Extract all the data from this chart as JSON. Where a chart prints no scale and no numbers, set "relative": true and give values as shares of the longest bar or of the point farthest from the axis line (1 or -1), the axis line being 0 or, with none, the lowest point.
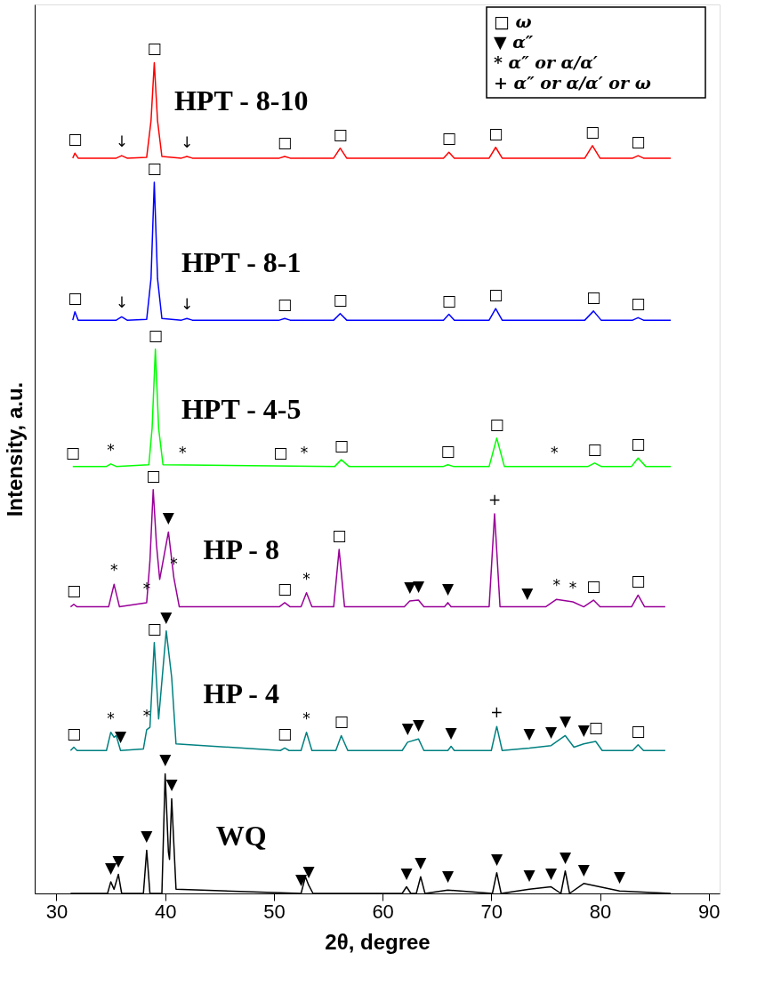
{
  "chart_data": {
    "type": "line",
    "relative": true,
    "xlabel": "2θ, degree",
    "ylabel": "Intensity, a.u.",
    "xlim": [
      28,
      91
    ],
    "xticks": [
      30,
      40,
      50,
      60,
      70,
      80,
      90
    ],
    "grid": false,
    "marker": "none",
    "line_style": "solid",
    "series": [
      {
        "name": "HPT - 8-10",
        "color": "#ff0000",
        "x": [
          31.5,
          31.7,
          32.0,
          35.5,
          36.0,
          36.5,
          38.3,
          38.7,
          39.0,
          39.3,
          39.7,
          41.5,
          42.0,
          42.5,
          50.5,
          51.0,
          51.5,
          55.5,
          56.1,
          56.7,
          65.6,
          66.1,
          66.6,
          69.8,
          70.4,
          71.0,
          78.6,
          79.3,
          80.0,
          83.0,
          83.5,
          84.0,
          86.5
        ],
        "values": [
          0.885,
          0.891,
          0.885,
          0.885,
          0.888,
          0.885,
          0.886,
          0.93,
          1.0,
          0.93,
          0.887,
          0.885,
          0.887,
          0.885,
          0.885,
          0.887,
          0.885,
          0.885,
          0.897,
          0.885,
          0.885,
          0.892,
          0.885,
          0.885,
          0.898,
          0.885,
          0.885,
          0.9,
          0.885,
          0.885,
          0.888,
          0.885,
          0.885
        ]
      },
      {
        "name": "HPT - 8-1",
        "color": "#0000ff",
        "x": [
          31.5,
          31.7,
          32.0,
          35.5,
          36.0,
          36.5,
          38.3,
          38.7,
          39.0,
          39.3,
          39.7,
          41.5,
          42.0,
          42.5,
          50.5,
          51.0,
          51.5,
          55.5,
          56.1,
          56.7,
          65.6,
          66.1,
          66.6,
          69.8,
          70.4,
          71.0,
          78.6,
          79.4,
          80.1,
          83.0,
          83.5,
          84.0,
          86.5
        ],
        "values": [
          0.69,
          0.7,
          0.69,
          0.69,
          0.694,
          0.69,
          0.691,
          0.74,
          0.856,
          0.74,
          0.692,
          0.69,
          0.692,
          0.69,
          0.69,
          0.692,
          0.69,
          0.69,
          0.698,
          0.69,
          0.69,
          0.697,
          0.69,
          0.69,
          0.704,
          0.69,
          0.69,
          0.701,
          0.69,
          0.69,
          0.693,
          0.69,
          0.69
        ]
      },
      {
        "name": "HPT - 4-5",
        "color": "#00ff00",
        "x": [
          31.5,
          34.6,
          35.0,
          35.5,
          38.5,
          38.8,
          39.1,
          39.4,
          39.8,
          55.6,
          56.2,
          56.9,
          65.6,
          66.0,
          66.5,
          69.8,
          70.5,
          71.2,
          78.9,
          79.5,
          80.1,
          82.9,
          83.5,
          84.2,
          86.5
        ],
        "values": [
          0.514,
          0.514,
          0.517,
          0.514,
          0.516,
          0.56,
          0.655,
          0.56,
          0.516,
          0.514,
          0.522,
          0.514,
          0.514,
          0.516,
          0.514,
          0.514,
          0.548,
          0.514,
          0.514,
          0.518,
          0.514,
          0.514,
          0.524,
          0.514,
          0.514
        ]
      },
      {
        "name": "HP - 8",
        "color": "#990099",
        "x": [
          31.3,
          31.6,
          31.9,
          34.8,
          35.3,
          35.8,
          38.3,
          38.6,
          38.9,
          39.2,
          39.5,
          40.3,
          40.8,
          41.3,
          50.5,
          51.0,
          51.5,
          52.5,
          53.0,
          53.5,
          55.5,
          56.0,
          56.5,
          62.0,
          62.5,
          63.3,
          63.8,
          65.7,
          66.0,
          66.3,
          69.8,
          70.3,
          70.8,
          75.0,
          76.0,
          77.5,
          78.5,
          79.4,
          80.0,
          82.9,
          83.5,
          84.1,
          86.0
        ],
        "values": [
          0.345,
          0.348,
          0.345,
          0.345,
          0.372,
          0.345,
          0.35,
          0.4,
          0.486,
          0.42,
          0.378,
          0.435,
          0.38,
          0.345,
          0.345,
          0.35,
          0.345,
          0.345,
          0.362,
          0.345,
          0.345,
          0.414,
          0.345,
          0.345,
          0.352,
          0.353,
          0.345,
          0.345,
          0.35,
          0.345,
          0.345,
          0.457,
          0.345,
          0.345,
          0.354,
          0.351,
          0.345,
          0.353,
          0.345,
          0.345,
          0.359,
          0.345,
          0.345
        ]
      },
      {
        "name": "HP - 4",
        "color": "#008080",
        "x": [
          31.3,
          31.6,
          31.9,
          34.6,
          35.0,
          35.3,
          35.5,
          35.9,
          38.0,
          38.3,
          38.6,
          39.0,
          39.4,
          40.1,
          40.6,
          41.0,
          50.6,
          51.0,
          51.4,
          52.5,
          53.0,
          53.5,
          55.7,
          56.2,
          56.8,
          61.8,
          62.3,
          63.3,
          63.8,
          66.0,
          66.3,
          66.6,
          70.0,
          70.5,
          71.0,
          73.5,
          75.5,
          76.8,
          77.6,
          78.5,
          79.6,
          80.2,
          83.0,
          83.5,
          84.0,
          86.0
        ],
        "values": [
          0.172,
          0.176,
          0.172,
          0.172,
          0.194,
          0.188,
          0.19,
          0.172,
          0.174,
          0.197,
          0.2,
          0.302,
          0.21,
          0.316,
          0.26,
          0.18,
          0.172,
          0.175,
          0.172,
          0.172,
          0.194,
          0.172,
          0.172,
          0.19,
          0.172,
          0.172,
          0.182,
          0.186,
          0.172,
          0.172,
          0.177,
          0.172,
          0.172,
          0.201,
          0.172,
          0.175,
          0.178,
          0.19,
          0.176,
          0.18,
          0.183,
          0.172,
          0.172,
          0.179,
          0.172,
          0.172
        ]
      },
      {
        "name": "WQ",
        "color": "#000000",
        "x": [
          31.3,
          34.7,
          35.0,
          35.3,
          35.7,
          36.0,
          38.0,
          38.3,
          38.6,
          39.7,
          40.0,
          40.3,
          40.4,
          40.6,
          41.0,
          52.5,
          52.9,
          53.2,
          53.6,
          61.8,
          62.2,
          62.6,
          63.1,
          63.5,
          63.9,
          66.0,
          70.1,
          70.5,
          70.9,
          73.5,
          75.5,
          76.4,
          76.8,
          77.2,
          78.5,
          81.8,
          86.5
        ],
        "values": [
          0.0,
          0.0,
          0.014,
          0.005,
          0.023,
          0.0,
          0.0,
          0.052,
          0.0,
          0.0,
          0.144,
          0.05,
          0.041,
          0.114,
          0.005,
          0.0,
          0.02,
          0.01,
          0.0,
          0.0,
          0.008,
          0.0,
          0.0,
          0.02,
          0.0,
          0.004,
          0.0,
          0.025,
          0.0,
          0.005,
          0.008,
          0.0,
          0.027,
          0.0,
          0.012,
          0.003,
          0.0
        ]
      }
    ],
    "annotations": [
      "□ ω",
      "▼ α″",
      "* α″ or α/α′",
      "+ α″ or α/α′ or ω",
      {
        "text": "□",
        "x": 31.7,
        "y": 0.891
      },
      {
        "text": "↓",
        "x": 36.0,
        "y": 0.888
      },
      {
        "text": "□",
        "x": 39.0,
        "y": 1.0
      },
      {
        "text": "↓",
        "x": 42.0,
        "y": 0.887
      },
      {
        "text": "□",
        "x": 51.0,
        "y": 0.887
      },
      {
        "text": "□",
        "x": 56.1,
        "y": 0.897
      },
      {
        "text": "□",
        "x": 66.1,
        "y": 0.892
      },
      {
        "text": "□",
        "x": 70.4,
        "y": 0.898
      },
      {
        "text": "□",
        "x": 79.3,
        "y": 0.9
      },
      {
        "text": "□",
        "x": 83.5,
        "y": 0.888
      },
      {
        "text": "□",
        "x": 31.7,
        "y": 0.7
      },
      {
        "text": "↓",
        "x": 36.0,
        "y": 0.694
      },
      {
        "text": "□",
        "x": 39.0,
        "y": 0.856
      },
      {
        "text": "↓",
        "x": 42.0,
        "y": 0.692
      },
      {
        "text": "□",
        "x": 51.0,
        "y": 0.692
      },
      {
        "text": "□",
        "x": 56.1,
        "y": 0.698
      },
      {
        "text": "□",
        "x": 66.1,
        "y": 0.697
      },
      {
        "text": "□",
        "x": 70.4,
        "y": 0.704
      },
      {
        "text": "□",
        "x": 79.4,
        "y": 0.701
      },
      {
        "text": "□",
        "x": 83.5,
        "y": 0.693
      },
      {
        "text": "□",
        "x": 31.5,
        "y": 0.514
      },
      {
        "text": "*",
        "x": 35.0,
        "y": 0.517
      },
      {
        "text": "□",
        "x": 39.1,
        "y": 0.655
      },
      {
        "text": "*",
        "x": 41.6,
        "y": 0.514
      },
      {
        "text": "□",
        "x": 50.6,
        "y": 0.514
      },
      {
        "text": "*",
        "x": 52.8,
        "y": 0.514
      },
      {
        "text": "□",
        "x": 56.2,
        "y": 0.522
      },
      {
        "text": "□",
        "x": 66.0,
        "y": 0.516
      },
      {
        "text": "□",
        "x": 70.5,
        "y": 0.548
      },
      {
        "text": "*",
        "x": 75.8,
        "y": 0.514
      },
      {
        "text": "□",
        "x": 79.5,
        "y": 0.518
      },
      {
        "text": "□",
        "x": 83.5,
        "y": 0.524
      },
      {
        "text": "□",
        "x": 31.6,
        "y": 0.348
      },
      {
        "text": "*",
        "x": 35.3,
        "y": 0.372
      },
      {
        "text": "*",
        "x": 38.3,
        "y": 0.35
      },
      {
        "text": "□",
        "x": 38.9,
        "y": 0.486
      },
      {
        "text": "▼",
        "x": 40.3,
        "y": 0.435
      },
      {
        "text": "*",
        "x": 40.8,
        "y": 0.38
      },
      {
        "text": "□",
        "x": 51.0,
        "y": 0.35
      },
      {
        "text": "*",
        "x": 53.0,
        "y": 0.362
      },
      {
        "text": "□",
        "x": 56.0,
        "y": 0.414
      },
      {
        "text": "▼",
        "x": 62.5,
        "y": 0.352
      },
      {
        "text": "▼",
        "x": 63.3,
        "y": 0.353
      },
      {
        "text": "▼",
        "x": 66.0,
        "y": 0.35
      },
      {
        "text": "+",
        "x": 70.3,
        "y": 0.457
      },
      {
        "text": "▼",
        "x": 73.3,
        "y": 0.345
      },
      {
        "text": "*",
        "x": 76.0,
        "y": 0.354
      },
      {
        "text": "*",
        "x": 77.5,
        "y": 0.351
      },
      {
        "text": "□",
        "x": 79.4,
        "y": 0.353
      },
      {
        "text": "□",
        "x": 83.5,
        "y": 0.359
      },
      {
        "text": "□",
        "x": 31.6,
        "y": 0.176
      },
      {
        "text": "*",
        "x": 35.0,
        "y": 0.194
      },
      {
        "text": "▼",
        "x": 35.9,
        "y": 0.172
      },
      {
        "text": "*",
        "x": 38.3,
        "y": 0.197
      },
      {
        "text": "□",
        "x": 39.0,
        "y": 0.302
      },
      {
        "text": "▼",
        "x": 40.1,
        "y": 0.316
      },
      {
        "text": "□",
        "x": 51.0,
        "y": 0.175
      },
      {
        "text": "*",
        "x": 53.0,
        "y": 0.194
      },
      {
        "text": "□",
        "x": 56.2,
        "y": 0.19
      },
      {
        "text": "▼",
        "x": 62.3,
        "y": 0.182
      },
      {
        "text": "▼",
        "x": 63.3,
        "y": 0.186
      },
      {
        "text": "▼",
        "x": 66.3,
        "y": 0.177
      },
      {
        "text": "+",
        "x": 70.5,
        "y": 0.201
      },
      {
        "text": "▼",
        "x": 73.5,
        "y": 0.175
      },
      {
        "text": "▼",
        "x": 75.5,
        "y": 0.178
      },
      {
        "text": "▼",
        "x": 76.8,
        "y": 0.19
      },
      {
        "text": "▼",
        "x": 78.5,
        "y": 0.18
      },
      {
        "text": "□",
        "x": 79.6,
        "y": 0.183
      },
      {
        "text": "□",
        "x": 83.5,
        "y": 0.179
      },
      {
        "text": "▼",
        "x": 35.0,
        "y": 0.014
      },
      {
        "text": "▼",
        "x": 35.7,
        "y": 0.023
      },
      {
        "text": "▼",
        "x": 38.3,
        "y": 0.052
      },
      {
        "text": "▼",
        "x": 40.0,
        "y": 0.144
      },
      {
        "text": "▼",
        "x": 40.6,
        "y": 0.114
      },
      {
        "text": "▼",
        "x": 52.5,
        "y": 0.0
      },
      {
        "text": "▼",
        "x": 53.2,
        "y": 0.01
      },
      {
        "text": "▼",
        "x": 62.2,
        "y": 0.008
      },
      {
        "text": "▼",
        "x": 63.5,
        "y": 0.02
      },
      {
        "text": "▼",
        "x": 66.0,
        "y": 0.004
      },
      {
        "text": "▼",
        "x": 70.5,
        "y": 0.025
      },
      {
        "text": "▼",
        "x": 73.5,
        "y": 0.005
      },
      {
        "text": "▼",
        "x": 75.5,
        "y": 0.008
      },
      {
        "text": "▼",
        "x": 76.8,
        "y": 0.027
      },
      {
        "text": "▼",
        "x": 78.5,
        "y": 0.012
      },
      {
        "text": "▼",
        "x": 81.8,
        "y": 0.003
      }
    ]
  }
}
